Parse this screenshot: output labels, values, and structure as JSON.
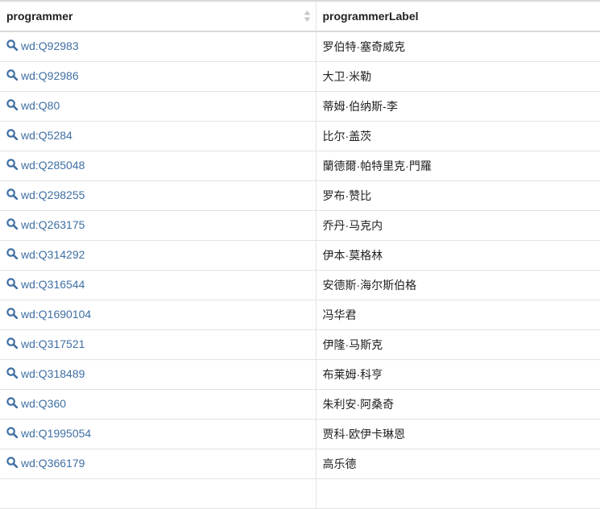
{
  "table": {
    "headers": [
      "programmer",
      "programmerLabel"
    ],
    "rows": [
      {
        "id": "wd:Q92983",
        "label": "罗伯特·塞奇威克"
      },
      {
        "id": "wd:Q92986",
        "label": "大卫·米勒"
      },
      {
        "id": "wd:Q80",
        "label": "蒂姆·伯纳斯-李"
      },
      {
        "id": "wd:Q5284",
        "label": "比尔·盖茨"
      },
      {
        "id": "wd:Q285048",
        "label": "蘭德爾·帕特里克·門羅"
      },
      {
        "id": "wd:Q298255",
        "label": "罗布·赞比"
      },
      {
        "id": "wd:Q263175",
        "label": "乔丹·马克内"
      },
      {
        "id": "wd:Q314292",
        "label": "伊本·莫格林"
      },
      {
        "id": "wd:Q316544",
        "label": "安德斯·海尔斯伯格"
      },
      {
        "id": "wd:Q1690104",
        "label": "冯华君"
      },
      {
        "id": "wd:Q317521",
        "label": "伊隆·马斯克"
      },
      {
        "id": "wd:Q318489",
        "label": "布莱姆·科亨"
      },
      {
        "id": "wd:Q360",
        "label": "朱利安·阿桑奇"
      },
      {
        "id": "wd:Q1995054",
        "label": "贾科·欧伊卡琳恩"
      },
      {
        "id": "wd:Q366179",
        "label": "高乐德"
      },
      {
        "id": "",
        "label": ""
      }
    ]
  },
  "colors": {
    "link": "#3f6fa3",
    "border": "#e3e3e3",
    "header_border": "#d9d9d9",
    "sort_icon": "#c8c8c8"
  },
  "icons": {
    "row_link": "search-icon",
    "sort": "sort-icon"
  }
}
